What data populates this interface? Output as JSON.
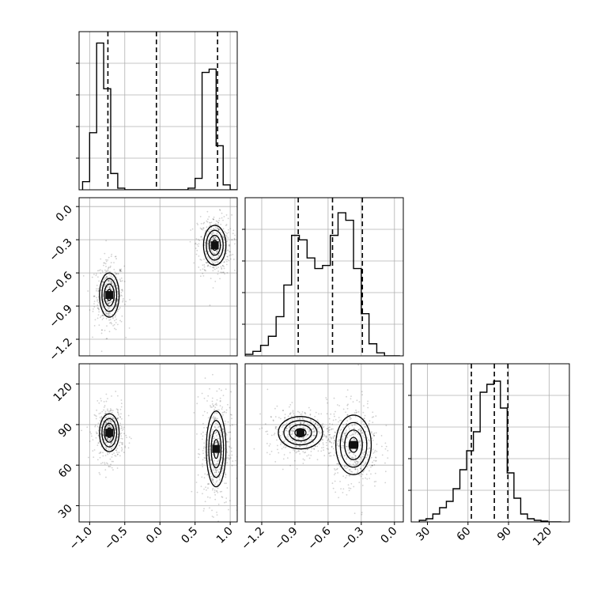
{
  "chart_data": {
    "type": "corner",
    "title": "",
    "parameters": [
      {
        "xlabel": "",
        "ticks": [
          -1.0,
          -0.5,
          0.0,
          0.5,
          1.0
        ],
        "tick_labels": [
          "−1.0",
          "−0.5",
          "0.0",
          "0.5",
          "1.0"
        ],
        "range": [
          -1.15,
          1.1
        ]
      },
      {
        "xlabel": "",
        "ticks": [
          -1.2,
          -0.9,
          -0.6,
          -0.3,
          0.0
        ],
        "tick_labels": [
          "−1.2",
          "−0.9",
          "−0.6",
          "−0.3",
          "0.0"
        ],
        "range": [
          -1.35,
          0.08
        ]
      },
      {
        "xlabel": "",
        "ticks": [
          30,
          60,
          90,
          120
        ],
        "tick_labels": [
          "30",
          "60",
          "90",
          "120"
        ],
        "range": [
          18,
          135
        ]
      }
    ],
    "histograms": [
      {
        "param": 0,
        "bin_edges": [
          -1.1,
          -1.0,
          -0.9,
          -0.8,
          -0.7,
          -0.6,
          -0.5,
          -0.4,
          -0.3,
          -0.2,
          -0.1,
          0.0,
          0.1,
          0.2,
          0.3,
          0.4,
          0.5,
          0.6,
          0.7,
          0.8,
          0.9,
          1.0,
          1.1
        ],
        "counts": [
          0.05,
          0.35,
          0.9,
          0.62,
          0.1,
          0.01,
          0,
          0,
          0,
          0,
          0,
          0,
          0,
          0,
          0,
          0.01,
          0.07,
          0.72,
          0.74,
          0.27,
          0.03,
          0
        ],
        "ymax": 0.97,
        "quantiles": [
          -0.74,
          -0.05,
          0.82
        ]
      },
      {
        "param": 1,
        "bin_edges": [
          -1.35,
          -1.28,
          -1.21,
          -1.14,
          -1.07,
          -1.0,
          -0.93,
          -0.86,
          -0.79,
          -0.72,
          -0.65,
          -0.58,
          -0.51,
          -0.44,
          -0.37,
          -0.3,
          -0.23,
          -0.16,
          -0.09,
          -0.02,
          0.05
        ],
        "counts": [
          0.01,
          0.03,
          0.07,
          0.13,
          0.26,
          0.47,
          0.8,
          0.77,
          0.65,
          0.58,
          0.6,
          0.8,
          0.95,
          0.9,
          0.58,
          0.28,
          0.08,
          0.02,
          0,
          0
        ],
        "ymax": 1.05,
        "quantiles": [
          -0.87,
          -0.56,
          -0.29
        ]
      },
      {
        "param": 2,
        "bin_edges": [
          24,
          29,
          34,
          39,
          44,
          49,
          54,
          59,
          64,
          69,
          74,
          79,
          84,
          89,
          94,
          99,
          104,
          109,
          114,
          119,
          124,
          129
        ],
        "counts": [
          0.01,
          0.02,
          0.05,
          0.09,
          0.13,
          0.21,
          0.33,
          0.45,
          0.57,
          0.82,
          0.87,
          0.89,
          0.72,
          0.31,
          0.15,
          0.05,
          0.02,
          0.01,
          0.005,
          0,
          0
        ],
        "ymax": 1.0,
        "quantiles": [
          62.5,
          79.5,
          89.5
        ]
      }
    ],
    "contours_2d": [
      {
        "x_param": 0,
        "y_param": 1,
        "modes": [
          {
            "center": [
              -0.72,
              -0.8
            ],
            "sigma": [
              0.07,
              0.1
            ],
            "weight": 0.5
          },
          {
            "center": [
              0.78,
              -0.35
            ],
            "sigma": [
              0.08,
              0.09
            ],
            "weight": 0.5
          }
        ]
      },
      {
        "x_param": 0,
        "y_param": 2,
        "modes": [
          {
            "center": [
              -0.72,
              84
            ],
            "sigma": [
              0.07,
              7
            ],
            "weight": 0.5
          },
          {
            "center": [
              0.8,
              72
            ],
            "sigma": [
              0.07,
              14
            ],
            "weight": 0.5
          }
        ]
      },
      {
        "x_param": 1,
        "y_param": 2,
        "modes": [
          {
            "center": [
              -0.85,
              84
            ],
            "sigma": [
              0.1,
              6
            ],
            "weight": 0.5
          },
          {
            "center": [
              -0.37,
              75
            ],
            "sigma": [
              0.08,
              11
            ],
            "weight": 0.5
          }
        ]
      }
    ],
    "grid": true,
    "legend": "none"
  }
}
